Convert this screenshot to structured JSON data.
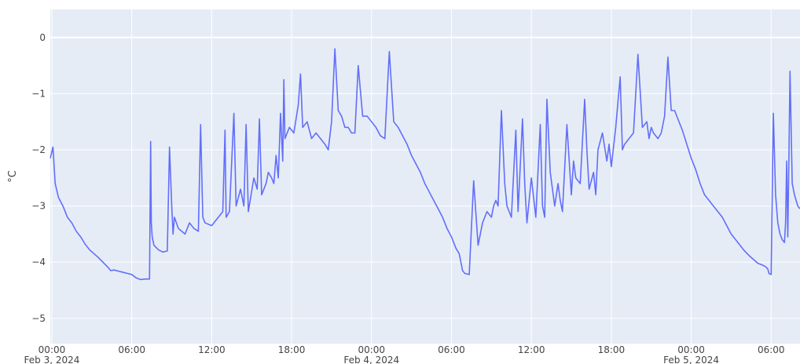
{
  "chart_data": {
    "type": "line",
    "ylabel": "°C",
    "ylim": [
      -5.45,
      0.5
    ],
    "xlim": [
      "2024-02-02T23:53",
      "2024-02-05T08:10"
    ],
    "yticks": [
      0,
      -1,
      -2,
      -3,
      -4,
      -5
    ],
    "ytick_labels": [
      "0",
      "−1",
      "−2",
      "−3",
      "−4",
      "−5"
    ],
    "xticks": [
      {
        "t": "2024-02-03T00:00",
        "label": "00:00",
        "date": "Feb 3, 2024"
      },
      {
        "t": "2024-02-03T06:00",
        "label": "06:00",
        "date": ""
      },
      {
        "t": "2024-02-03T12:00",
        "label": "12:00",
        "date": ""
      },
      {
        "t": "2024-02-03T18:00",
        "label": "18:00",
        "date": ""
      },
      {
        "t": "2024-02-04T00:00",
        "label": "00:00",
        "date": "Feb 4, 2024"
      },
      {
        "t": "2024-02-04T06:00",
        "label": "06:00",
        "date": ""
      },
      {
        "t": "2024-02-04T12:00",
        "label": "12:00",
        "date": ""
      },
      {
        "t": "2024-02-04T18:00",
        "label": "18:00",
        "date": ""
      },
      {
        "t": "2024-02-05T00:00",
        "label": "00:00",
        "date": "Feb 5, 2024"
      },
      {
        "t": "2024-02-05T06:00",
        "label": "06:00",
        "date": ""
      }
    ],
    "grid": true,
    "legend": "none",
    "colors": {
      "line": "#636efa",
      "plot_bg": "#e5ecf6",
      "grid": "#ffffff"
    },
    "series": [
      {
        "x": [
          "2024-02-02T23:53",
          "2024-02-03T00:05",
          "2024-02-03T00:15",
          "2024-02-03T00:30",
          "2024-02-03T00:50",
          "2024-02-03T01:10",
          "2024-02-03T01:30",
          "2024-02-03T01:50",
          "2024-02-03T02:10",
          "2024-02-03T02:30",
          "2024-02-03T02:50",
          "2024-02-03T03:10",
          "2024-02-03T03:30",
          "2024-02-03T03:50",
          "2024-02-03T04:10",
          "2024-02-03T04:25",
          "2024-02-03T04:40",
          "2024-02-03T05:00",
          "2024-02-03T05:20",
          "2024-02-03T05:40",
          "2024-02-03T06:00",
          "2024-02-03T06:20",
          "2024-02-03T06:40",
          "2024-02-03T07:00",
          "2024-02-03T07:20",
          "2024-02-03T07:25",
          "2024-02-03T07:28",
          "2024-02-03T07:32",
          "2024-02-03T07:40",
          "2024-02-03T08:00",
          "2024-02-03T08:20",
          "2024-02-03T08:40",
          "2024-02-03T08:50",
          "2024-02-03T09:00",
          "2024-02-03T09:06",
          "2024-02-03T09:12",
          "2024-02-03T09:30",
          "2024-02-03T10:00",
          "2024-02-03T10:20",
          "2024-02-03T10:40",
          "2024-02-03T11:00",
          "2024-02-03T11:10",
          "2024-02-03T11:20",
          "2024-02-03T11:30",
          "2024-02-03T12:00",
          "2024-02-03T12:30",
          "2024-02-03T12:50",
          "2024-02-03T13:00",
          "2024-02-03T13:05",
          "2024-02-03T13:20",
          "2024-02-03T13:40",
          "2024-02-03T13:50",
          "2024-02-03T14:10",
          "2024-02-03T14:25",
          "2024-02-03T14:35",
          "2024-02-03T14:45",
          "2024-02-03T15:10",
          "2024-02-03T15:25",
          "2024-02-03T15:35",
          "2024-02-03T15:45",
          "2024-02-03T16:05",
          "2024-02-03T16:15",
          "2024-02-03T16:30",
          "2024-02-03T16:40",
          "2024-02-03T16:50",
          "2024-02-03T17:00",
          "2024-02-03T17:10",
          "2024-02-03T17:20",
          "2024-02-03T17:25",
          "2024-02-03T17:30",
          "2024-02-03T17:50",
          "2024-02-03T18:10",
          "2024-02-03T18:30",
          "2024-02-03T18:40",
          "2024-02-03T18:50",
          "2024-02-03T19:10",
          "2024-02-03T19:30",
          "2024-02-03T19:50",
          "2024-02-03T20:10",
          "2024-02-03T20:30",
          "2024-02-03T20:45",
          "2024-02-03T21:00",
          "2024-02-03T21:15",
          "2024-02-03T21:30",
          "2024-02-03T21:45",
          "2024-02-03T22:00",
          "2024-02-03T22:15",
          "2024-02-03T22:30",
          "2024-02-03T22:45",
          "2024-02-03T23:00",
          "2024-02-03T23:20",
          "2024-02-03T23:40",
          "2024-02-04T00:00",
          "2024-02-04T00:20",
          "2024-02-04T00:40",
          "2024-02-04T01:00",
          "2024-02-04T01:20",
          "2024-02-04T01:40",
          "2024-02-04T02:00",
          "2024-02-04T02:20",
          "2024-02-04T02:40",
          "2024-02-04T03:00",
          "2024-02-04T03:20",
          "2024-02-04T03:40",
          "2024-02-04T04:00",
          "2024-02-04T04:20",
          "2024-02-04T04:40",
          "2024-02-04T05:00",
          "2024-02-04T05:20",
          "2024-02-04T05:40",
          "2024-02-04T06:00",
          "2024-02-04T06:20",
          "2024-02-04T06:35",
          "2024-02-04T06:40",
          "2024-02-04T06:45",
          "2024-02-04T06:50",
          "2024-02-04T07:00",
          "2024-02-04T07:20",
          "2024-02-04T07:40",
          "2024-02-04T08:00",
          "2024-02-04T08:20",
          "2024-02-04T08:40",
          "2024-02-04T09:00",
          "2024-02-04T09:10",
          "2024-02-04T09:20",
          "2024-02-04T09:30",
          "2024-02-04T09:45",
          "2024-02-04T10:00",
          "2024-02-04T10:10",
          "2024-02-04T10:20",
          "2024-02-04T10:30",
          "2024-02-04T10:50",
          "2024-02-04T11:00",
          "2024-02-04T11:20",
          "2024-02-04T11:30",
          "2024-02-04T11:40",
          "2024-02-04T12:00",
          "2024-02-04T12:20",
          "2024-02-04T12:40",
          "2024-02-04T12:50",
          "2024-02-04T13:00",
          "2024-02-04T13:10",
          "2024-02-04T13:25",
          "2024-02-04T13:45",
          "2024-02-04T14:00",
          "2024-02-04T14:10",
          "2024-02-04T14:20",
          "2024-02-04T14:40",
          "2024-02-04T15:00",
          "2024-02-04T15:10",
          "2024-02-04T15:20",
          "2024-02-04T15:40",
          "2024-02-04T16:00",
          "2024-02-04T16:10",
          "2024-02-04T16:20",
          "2024-02-04T16:40",
          "2024-02-04T16:50",
          "2024-02-04T17:00",
          "2024-02-04T17:20",
          "2024-02-04T17:40",
          "2024-02-04T17:50",
          "2024-02-04T18:00",
          "2024-02-04T18:20",
          "2024-02-04T18:40",
          "2024-02-04T18:50",
          "2024-02-04T19:00",
          "2024-02-04T19:20",
          "2024-02-04T19:40",
          "2024-02-04T20:00",
          "2024-02-04T20:20",
          "2024-02-04T20:40",
          "2024-02-04T20:50",
          "2024-02-04T21:00",
          "2024-02-04T21:10",
          "2024-02-04T21:30",
          "2024-02-04T21:45",
          "2024-02-04T22:00",
          "2024-02-04T22:15",
          "2024-02-04T22:30",
          "2024-02-04T22:45",
          "2024-02-04T23:00",
          "2024-02-04T23:20",
          "2024-02-04T23:40",
          "2024-02-05T00:00",
          "2024-02-05T00:20",
          "2024-02-05T00:40",
          "2024-02-05T01:00",
          "2024-02-05T01:20",
          "2024-02-05T01:40",
          "2024-02-05T02:00",
          "2024-02-05T02:20",
          "2024-02-05T02:40",
          "2024-02-05T03:00",
          "2024-02-05T03:20",
          "2024-02-05T03:40",
          "2024-02-05T04:00",
          "2024-02-05T04:20",
          "2024-02-05T04:40",
          "2024-02-05T05:00",
          "2024-02-05T05:20",
          "2024-02-05T05:35",
          "2024-02-05T05:45",
          "2024-02-05T05:50",
          "2024-02-05T06:00",
          "2024-02-05T06:10",
          "2024-02-05T06:20",
          "2024-02-05T06:30",
          "2024-02-05T06:40",
          "2024-02-05T06:50",
          "2024-02-05T07:00",
          "2024-02-05T07:05",
          "2024-02-05T07:10",
          "2024-02-05T07:15",
          "2024-02-05T07:20",
          "2024-02-05T07:25",
          "2024-02-05T07:35",
          "2024-02-05T07:45",
          "2024-02-05T08:00",
          "2024-02-05T08:10"
        ],
        "y": [
          -2.15,
          -1.95,
          -2.6,
          -2.85,
          -3.0,
          -3.2,
          -3.3,
          -3.45,
          -3.55,
          -3.68,
          -3.78,
          -3.85,
          -3.92,
          -4.0,
          -4.08,
          -4.15,
          -4.14,
          -4.16,
          -4.18,
          -4.2,
          -4.22,
          -4.28,
          -4.31,
          -4.3,
          -4.3,
          -1.85,
          -3.3,
          -3.55,
          -3.7,
          -3.78,
          -3.82,
          -3.8,
          -1.95,
          -3.0,
          -3.5,
          -3.2,
          -3.4,
          -3.5,
          -3.3,
          -3.4,
          -3.45,
          -1.55,
          -3.2,
          -3.3,
          -3.35,
          -3.2,
          -3.1,
          -1.65,
          -3.2,
          -3.1,
          -1.35,
          -3.0,
          -2.7,
          -3.0,
          -1.55,
          -3.1,
          -2.5,
          -2.7,
          -1.45,
          -2.8,
          -2.6,
          -2.4,
          -2.5,
          -2.6,
          -2.1,
          -2.5,
          -1.35,
          -2.2,
          -0.75,
          -1.8,
          -1.6,
          -1.7,
          -1.2,
          -0.65,
          -1.6,
          -1.5,
          -1.8,
          -1.7,
          -1.8,
          -1.9,
          -2.0,
          -1.5,
          -0.2,
          -1.3,
          -1.4,
          -1.6,
          -1.6,
          -1.7,
          -1.7,
          -0.5,
          -1.4,
          -1.4,
          -1.5,
          -1.6,
          -1.75,
          -1.8,
          -0.25,
          -1.5,
          -1.6,
          -1.75,
          -1.9,
          -2.1,
          -2.25,
          -2.4,
          -2.6,
          -2.75,
          -2.9,
          -3.05,
          -3.2,
          -3.4,
          -3.55,
          -3.75,
          -3.85,
          -3.95,
          -4.05,
          -4.15,
          -4.2,
          -4.22,
          -2.55,
          -3.7,
          -3.3,
          -3.1,
          -3.2,
          -3.0,
          -2.9,
          -3.0,
          -1.3,
          -2.6,
          -3.0,
          -3.1,
          -3.2,
          -1.65,
          -3.1,
          -1.45,
          -2.6,
          -3.3,
          -2.5,
          -3.2,
          -1.55,
          -3.0,
          -3.2,
          -1.1,
          -2.4,
          -3.0,
          -2.6,
          -2.9,
          -3.1,
          -1.55,
          -2.8,
          -2.2,
          -2.5,
          -2.6,
          -1.1,
          -2.0,
          -2.7,
          -2.4,
          -2.8,
          -2.0,
          -1.7,
          -2.2,
          -1.9,
          -2.3,
          -1.6,
          -0.7,
          -2.0,
          -1.9,
          -1.8,
          -1.7,
          -0.3,
          -1.6,
          -1.5,
          -1.8,
          -1.6,
          -1.7,
          -1.8,
          -1.7,
          -1.4,
          -0.35,
          -1.3,
          -1.3,
          -1.45,
          -1.65,
          -1.9,
          -2.15,
          -2.35,
          -2.6,
          -2.8,
          -2.9,
          -3.0,
          -3.1,
          -3.2,
          -3.35,
          -3.5,
          -3.6,
          -3.7,
          -3.8,
          -3.88,
          -3.95,
          -4.02,
          -4.05,
          -4.08,
          -4.12,
          -4.2,
          -4.22,
          -1.35,
          -2.8,
          -3.3,
          -3.5,
          -3.6,
          -3.65,
          -3.3,
          -2.2,
          -3.55,
          -2.15,
          -0.6,
          -2.6,
          -2.8,
          -3.0,
          -3.05
        ]
      }
    ]
  }
}
